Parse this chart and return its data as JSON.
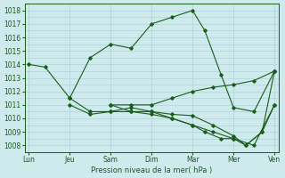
{
  "title": "Pression niveau de la mer( hPa )",
  "bg_color": "#ceeaec",
  "grid_color": "#afd4d8",
  "line_color": "#1a5c1a",
  "ylim": [
    1007.5,
    1018.5
  ],
  "yticks": [
    1008,
    1009,
    1010,
    1011,
    1012,
    1013,
    1014,
    1015,
    1016,
    1017,
    1018
  ],
  "xtick_labels": [
    "Lun",
    "Jeu",
    "Sam",
    "Dim",
    "Mar",
    "Mer",
    "Ven"
  ],
  "xtick_pos": [
    0,
    1,
    2,
    3,
    4,
    5,
    6
  ],
  "xlim": [
    -0.1,
    6.1
  ],
  "series": [
    {
      "x": [
        0,
        0.4,
        1.0,
        1.5,
        2.0,
        2.5,
        3.0,
        3.5,
        4.0,
        4.3,
        4.7,
        5.0,
        5.5,
        6.0
      ],
      "y": [
        1014.0,
        1013.8,
        1011.5,
        1014.5,
        1015.5,
        1015.2,
        1017.0,
        1017.5,
        1018.0,
        1016.5,
        1013.2,
        1010.8,
        1010.5,
        1013.5
      ]
    },
    {
      "x": [
        2.0,
        2.5,
        3.0,
        3.5,
        4.0,
        4.5,
        5.0,
        5.5,
        6.0
      ],
      "y": [
        1011.0,
        1011.0,
        1011.0,
        1011.5,
        1012.0,
        1012.3,
        1012.5,
        1012.8,
        1013.5
      ]
    },
    {
      "x": [
        2.0,
        2.5,
        3.0,
        3.5,
        4.0,
        4.5,
        5.0,
        5.5,
        6.0
      ],
      "y": [
        1011.0,
        1010.5,
        1010.3,
        1010.0,
        1009.5,
        1009.0,
        1008.5,
        1008.0,
        1011.0
      ]
    },
    {
      "x": [
        1.0,
        1.5,
        2.0,
        2.5,
        3.0,
        3.5,
        4.0,
        4.5,
        5.0,
        5.3,
        5.7,
        6.0
      ],
      "y": [
        1011.5,
        1010.5,
        1010.5,
        1010.8,
        1010.5,
        1010.3,
        1010.2,
        1009.5,
        1008.7,
        1008.0,
        1009.0,
        1013.5
      ]
    },
    {
      "x": [
        1.0,
        1.5,
        2.0,
        2.5,
        3.0,
        3.5,
        4.0,
        4.3,
        4.7,
        5.0,
        5.3,
        5.7,
        6.0
      ],
      "y": [
        1011.0,
        1010.3,
        1010.5,
        1010.5,
        1010.5,
        1010.0,
        1009.5,
        1009.0,
        1008.5,
        1008.5,
        1008.0,
        1009.0,
        1011.0
      ]
    }
  ]
}
